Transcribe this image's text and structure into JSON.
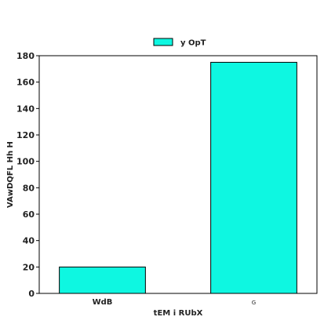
{
  "chart_data": {
    "type": "bar",
    "categories": [
      "WdB",
      "G"
    ],
    "series": [
      {
        "name": "y OpT",
        "values": [
          20,
          175
        ]
      }
    ],
    "xlabel": "tEM i  RUbX",
    "ylabel": "VAwDQFL Hh H",
    "ylim": [
      0,
      180
    ],
    "yticks": [
      0,
      20,
      40,
      60,
      80,
      100,
      120,
      140,
      160,
      180
    ],
    "grid": false,
    "legend": "top-center",
    "colors": {
      "bar": "#0ef7e1",
      "edge": "#000000"
    }
  }
}
